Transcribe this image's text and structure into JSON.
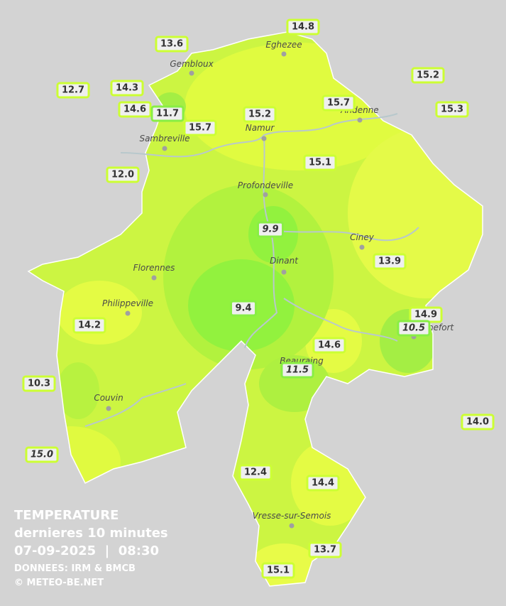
{
  "towns": [
    "Eghezee",
    "Gembloux",
    "Andenne",
    "Namur",
    "Sambreville",
    "Profondeville",
    "Ciney",
    "Dinant",
    "Florennes",
    "Philippeville",
    "Rochefort",
    "Beauraing",
    "Couvin",
    "Vresse-sur-Semois"
  ],
  "stations": [
    "14.8",
    "13.6",
    "15.2",
    "12.7",
    "14.3",
    "14.6",
    "11.7",
    "15.7",
    "15.2",
    "15.7",
    "15.3",
    "12.0",
    "15.1",
    "9.9",
    "13.9",
    "9.4",
    "14.9",
    "10.5",
    "14.2",
    "14.6",
    "11.5",
    "10.3",
    "14.0",
    "15.0",
    "12.4",
    "14.4",
    "13.7",
    "15.1"
  ],
  "legend": {
    "title": "TEMPERATURE",
    "subtitle": "dernieres 10 minutes",
    "timestamp": "07-09-2025  |  08:30",
    "source": "DONNEES: IRM & BMCB",
    "copyright": "© METEO-BE.NET"
  }
}
